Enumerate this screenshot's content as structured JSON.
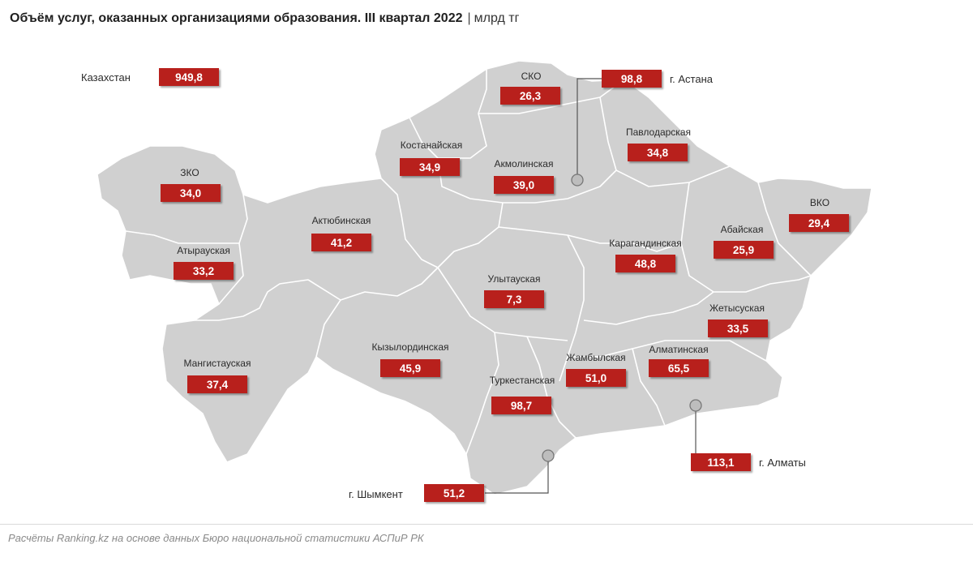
{
  "title": {
    "main": "Объём услуг, оказанных организациями образования. III квартал 2022",
    "separator": "|",
    "unit": "млрд тг"
  },
  "colors": {
    "region_fill": "#d0d0d0",
    "region_stroke": "#ffffff",
    "value_box": "#b8201c",
    "city_marker": "#bdbdbd"
  },
  "total": {
    "label": "Казахстан",
    "value": "949,8"
  },
  "regions": [
    {
      "id": "sko",
      "label": "СКО",
      "value": "26,3"
    },
    {
      "id": "kostanay",
      "label": "Костанайская",
      "value": "34,9"
    },
    {
      "id": "akmola",
      "label": "Акмолинская",
      "value": "39,0"
    },
    {
      "id": "pavlodar",
      "label": "Павлодарская",
      "value": "34,8"
    },
    {
      "id": "zko",
      "label": "ЗКО",
      "value": "34,0"
    },
    {
      "id": "aktobe",
      "label": "Актюбинская",
      "value": "41,2"
    },
    {
      "id": "atyrau",
      "label": "Атырауская",
      "value": "33,2"
    },
    {
      "id": "karaganda",
      "label": "Карагандинская",
      "value": "48,8"
    },
    {
      "id": "abai",
      "label": "Абайская",
      "value": "25,9"
    },
    {
      "id": "vko",
      "label": "ВКО",
      "value": "29,4"
    },
    {
      "id": "ulytau",
      "label": "Улытауская",
      "value": "7,3"
    },
    {
      "id": "zhetysu",
      "label": "Жетысуская",
      "value": "33,5"
    },
    {
      "id": "mangystau",
      "label": "Мангистауская",
      "value": "37,4"
    },
    {
      "id": "kyzylorda",
      "label": "Кызылординская",
      "value": "45,9"
    },
    {
      "id": "zhambyl",
      "label": "Жамбылская",
      "value": "51,0"
    },
    {
      "id": "almaty_region",
      "label": "Алматинская",
      "value": "65,5"
    },
    {
      "id": "turkestan",
      "label": "Туркестанская",
      "value": "98,7"
    }
  ],
  "cities": [
    {
      "id": "astana",
      "label": "г. Астана",
      "value": "98,8"
    },
    {
      "id": "almaty",
      "label": "г. Алматы",
      "value": "113,1"
    },
    {
      "id": "shymkent",
      "label": "г. Шымкент",
      "value": "51,2"
    }
  ],
  "footer": "Расчёты Ranking.kz на основе данных Бюро национальной статистики АСПиР РК"
}
